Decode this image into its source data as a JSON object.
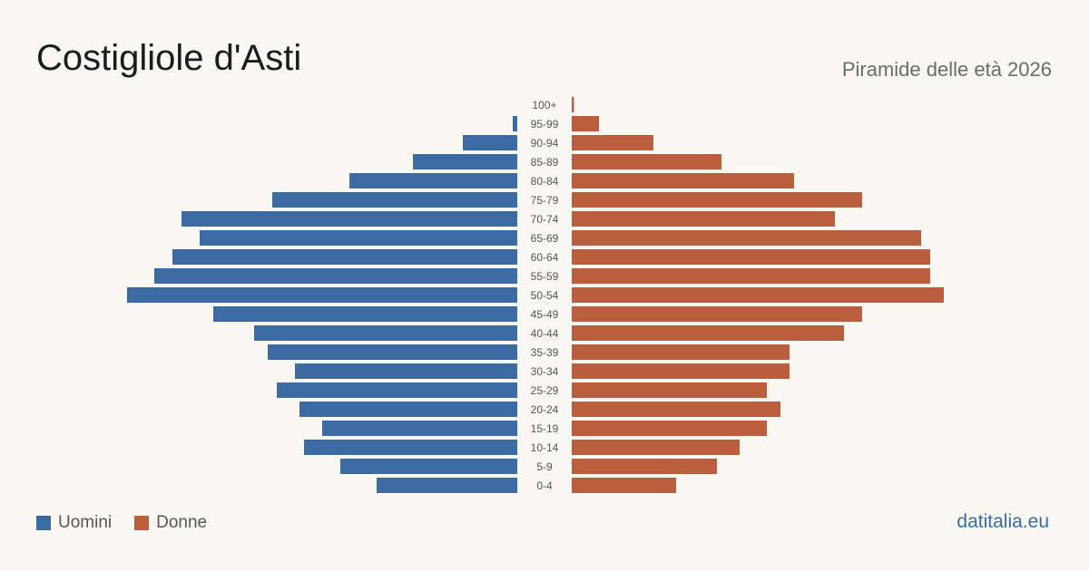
{
  "header": {
    "title": "Costigliole d'Asti",
    "subtitle": "Piramide delle età 2026"
  },
  "legend": {
    "men_label": "Uomini",
    "women_label": "Donne"
  },
  "footer": {
    "brand": "datitalia.eu"
  },
  "colors": {
    "men": "#3b6ba0",
    "women": "#bb5e3d",
    "background": "#f9f7f2",
    "tick_label": "#555555"
  },
  "chart_data": {
    "type": "bar",
    "orientation": "horizontal-pyramid",
    "categories": [
      "100+",
      "95-99",
      "90-94",
      "85-89",
      "80-84",
      "75-79",
      "70-74",
      "65-69",
      "60-64",
      "55-59",
      "50-54",
      "45-49",
      "40-44",
      "35-39",
      "30-34",
      "25-29",
      "20-24",
      "15-19",
      "10-14",
      "5-9",
      "0-4"
    ],
    "series": [
      {
        "name": "Uomini",
        "values": [
          0,
          1,
          12,
          23,
          37,
          54,
          74,
          70,
          76,
          80,
          86,
          67,
          58,
          55,
          49,
          53,
          48,
          43,
          47,
          39,
          31
        ]
      },
      {
        "name": "Donne",
        "values": [
          0.5,
          6,
          18,
          33,
          49,
          64,
          58,
          77,
          79,
          79,
          82,
          64,
          60,
          48,
          48,
          43,
          46,
          43,
          37,
          32,
          23
        ]
      }
    ],
    "xlim": [
      0,
      86
    ],
    "grid": false,
    "legend_position": "bottom-left"
  }
}
